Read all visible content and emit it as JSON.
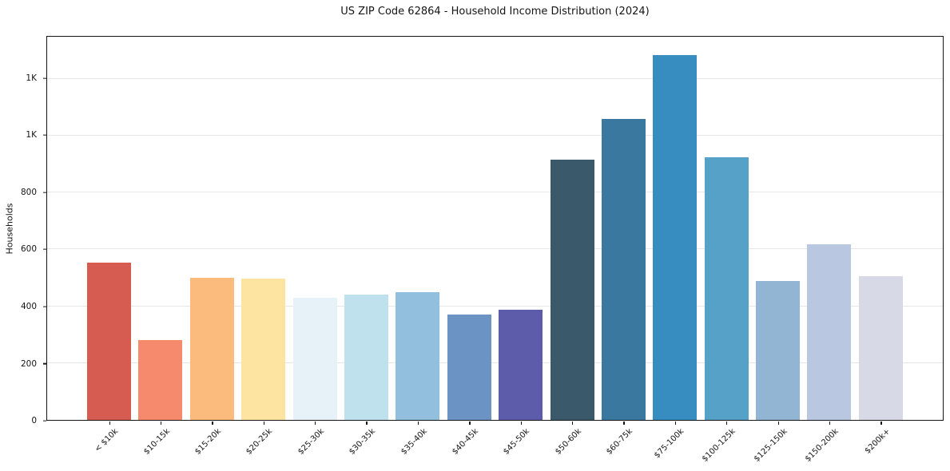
{
  "title": "US ZIP Code 62864 - Household Income Distribution (2024)",
  "chart_data": {
    "type": "bar",
    "title": "US ZIP Code 62864 - Household Income Distribution (2024)",
    "xlabel": "",
    "ylabel": "Households",
    "categories": [
      "< $10k",
      "$10-15k",
      "$15-20k",
      "$20-25k",
      "$25-30k",
      "$30-35k",
      "$35-40k",
      "$40-45k",
      "$45-50k",
      "$50-60k",
      "$60-75k",
      "$75-100k",
      "$100-125k",
      "$125-150k",
      "$150-200k",
      "$200k+"
    ],
    "values": [
      554,
      281,
      500,
      497,
      430,
      440,
      449,
      372,
      388,
      916,
      1060,
      1284,
      923,
      490,
      617,
      506
    ],
    "bar_colors": [
      "#d65c52",
      "#f58a6d",
      "#fbbb7d",
      "#fde4a0",
      "#e6f2f8",
      "#bfe1ee",
      "#92bfdd",
      "#6b93c4",
      "#5c5caa",
      "#3a5a6c",
      "#3a78a0",
      "#388dc0",
      "#55a1c8",
      "#92b5d3",
      "#b9c8e0",
      "#d8d9e7"
    ],
    "ylim": [
      0,
      1348
    ],
    "ytick_values": [
      0,
      200,
      400,
      600,
      800,
      1000,
      1200
    ],
    "ytick_labels": [
      "0",
      "200",
      "400",
      "600",
      "800",
      "1K",
      "1K"
    ],
    "grid": "horizontal",
    "legend": "none",
    "background_color": "#ffffff",
    "grid_color": "#e6e6e6",
    "spine_color": "#161616",
    "text_color": "#151515"
  }
}
